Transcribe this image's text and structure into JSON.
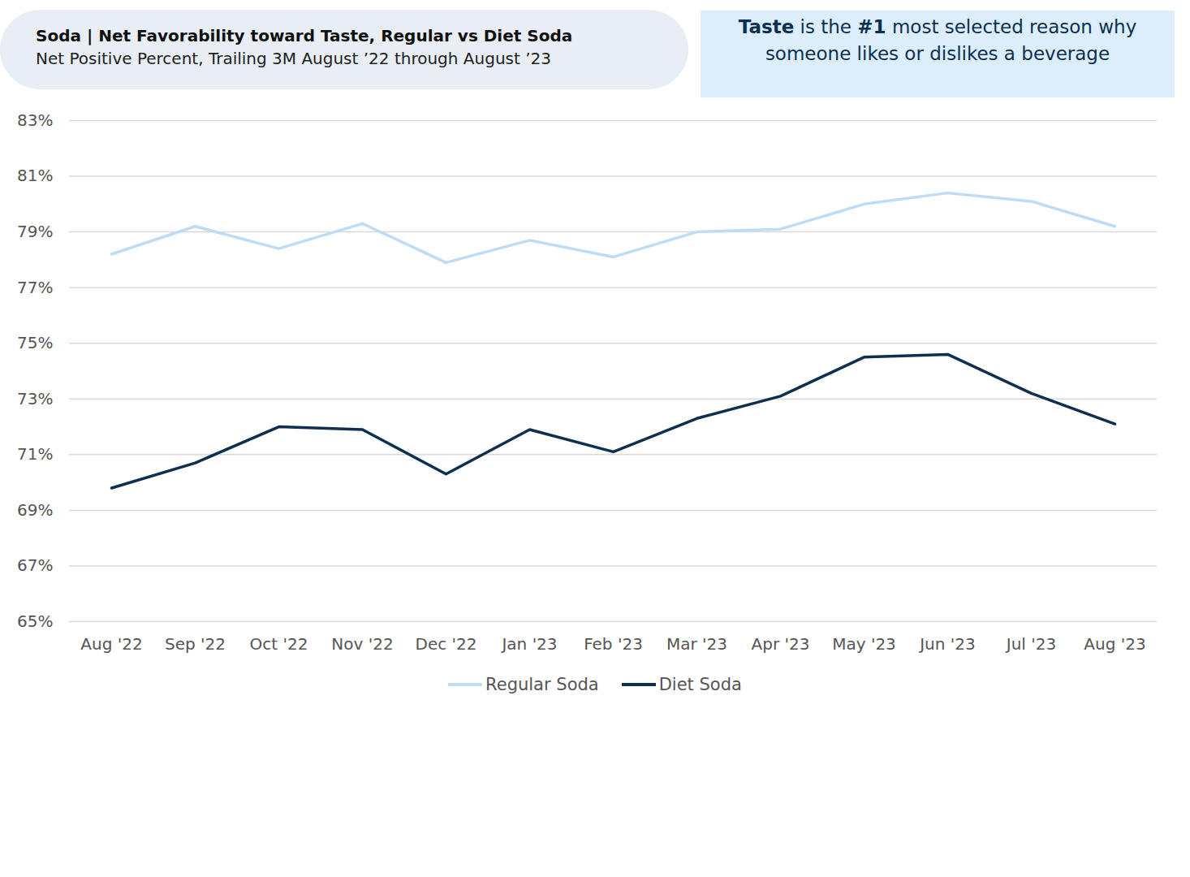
{
  "chart_data": {
    "type": "line",
    "title": "Soda | Net Favorability toward Taste, Regular vs Diet Soda",
    "subtitle": "Net Positive Percent, Trailing 3M August ’22 through August ’23",
    "annotation": [
      "Taste",
      " is the ",
      "#1",
      " most selected reason why someone likes or dislikes a beverage"
    ],
    "categories": [
      "Aug '22",
      "Sep '22",
      "Oct '22",
      "Nov '22",
      "Dec '22",
      "Jan '23",
      "Feb '23",
      "Mar '23",
      "Apr '23",
      "May '23",
      "Jun '23",
      "Jul '23",
      "Aug '23"
    ],
    "series": [
      {
        "name": "Regular Soda",
        "color": "#bddcf5",
        "values": [
          78.2,
          79.2,
          78.4,
          79.3,
          77.9,
          78.7,
          78.1,
          79.0,
          79.1,
          80.0,
          80.4,
          80.1,
          79.2
        ]
      },
      {
        "name": "Diet Soda",
        "color": "#0d3050",
        "values": [
          69.8,
          70.7,
          72.0,
          71.9,
          70.3,
          71.9,
          71.1,
          72.3,
          73.1,
          74.5,
          74.6,
          73.2,
          72.1
        ]
      }
    ],
    "ylim": [
      65,
      83
    ],
    "yticks": [
      {
        "value": 65,
        "label": "65%"
      },
      {
        "value": 67,
        "label": "67%"
      },
      {
        "value": 69,
        "label": "69%"
      },
      {
        "value": 71,
        "label": "71%"
      },
      {
        "value": 73,
        "label": "73%"
      },
      {
        "value": 75,
        "label": "75%"
      },
      {
        "value": 77,
        "label": "77%"
      },
      {
        "value": 79,
        "label": "79%"
      },
      {
        "value": 81,
        "label": "81%"
      },
      {
        "value": 83,
        "label": "83%"
      }
    ],
    "grid": true,
    "legend": "bottom"
  }
}
